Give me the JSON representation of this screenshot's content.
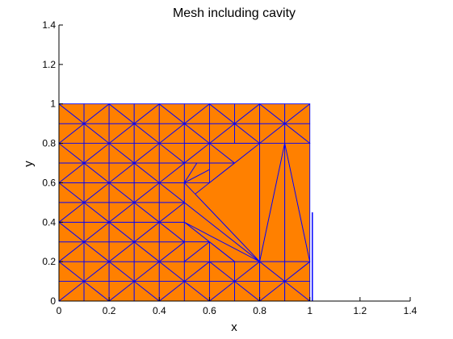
{
  "chart_data": {
    "type": "mesh",
    "title": "Mesh including cavity",
    "xlabel": "x",
    "ylabel": "y",
    "xlim": [
      0,
      1.4
    ],
    "ylim": [
      0,
      1.4
    ],
    "x_ticks": [
      0,
      0.2,
      0.4,
      0.6,
      0.8,
      1,
      1.2,
      1.4
    ],
    "y_ticks": [
      0,
      0.2,
      0.4,
      0.6,
      0.8,
      1,
      1.2,
      1.4
    ],
    "x_tick_labels": [
      "0",
      "0.2",
      "0.4",
      "0.6",
      "0.8",
      "1",
      "1.2",
      "1.4"
    ],
    "y_tick_labels": [
      "0",
      "0.2",
      "0.4",
      "0.6",
      "0.8",
      "1",
      "1.2",
      "1.4"
    ],
    "grid": false,
    "fill_color": "#FF8000",
    "edge_color": "#0000FF",
    "grid_spacing": 0.1,
    "vertices": [
      [
        0.5,
        0.6
      ],
      [
        0.6,
        0.8
      ],
      [
        0.8,
        0.8
      ],
      [
        0.9,
        0.8
      ],
      [
        1.0,
        0.8
      ],
      [
        0.8,
        0.2
      ],
      [
        0.9,
        0.2
      ],
      [
        1.0,
        0.2
      ],
      [
        0.7,
        0.2
      ],
      [
        0.5,
        0.4
      ],
      [
        0.5,
        0.2
      ]
    ],
    "triangles": [
      [
        [
          0.5,
          0.6
        ],
        [
          0.6,
          0.6
        ],
        [
          0.6,
          0.7
        ]
      ],
      [
        [
          0.5,
          0.6
        ],
        [
          0.6,
          0.7
        ],
        [
          0.6,
          0.8
        ]
      ],
      [
        [
          0.5,
          0.6
        ],
        [
          0.5,
          0.7
        ],
        [
          0.6,
          0.8
        ]
      ],
      [
        [
          0.5,
          0.7
        ],
        [
          0.5,
          0.8
        ],
        [
          0.6,
          0.8
        ]
      ],
      [
        [
          0.5,
          0.6
        ],
        [
          0.6,
          0.6
        ],
        [
          0.8,
          0.8
        ]
      ],
      [
        [
          0.5,
          0.6
        ],
        [
          0.6,
          0.8
        ],
        [
          0.8,
          0.8
        ]
      ],
      [
        [
          0.5,
          0.6
        ],
        [
          0.8,
          0.8
        ],
        [
          0.8,
          0.2
        ]
      ],
      [
        [
          0.5,
          0.6
        ],
        [
          0.5,
          0.4
        ],
        [
          0.8,
          0.2
        ]
      ],
      [
        [
          0.5,
          0.4
        ],
        [
          0.8,
          0.2
        ],
        [
          0.7,
          0.2
        ]
      ],
      [
        [
          0.5,
          0.4
        ],
        [
          0.7,
          0.2
        ],
        [
          0.6,
          0.3
        ]
      ],
      [
        [
          0.5,
          0.4
        ],
        [
          0.6,
          0.3
        ],
        [
          0.5,
          0.3
        ]
      ],
      [
        [
          0.5,
          0.3
        ],
        [
          0.6,
          0.3
        ],
        [
          0.5,
          0.2
        ]
      ],
      [
        [
          0.5,
          0.2
        ],
        [
          0.6,
          0.3
        ],
        [
          0.7,
          0.2
        ]
      ],
      [
        [
          0.8,
          0.8
        ],
        [
          0.8,
          0.2
        ],
        [
          0.9,
          0.8
        ]
      ],
      [
        [
          0.8,
          0.2
        ],
        [
          0.9,
          0.8
        ],
        [
          0.9,
          0.2
        ]
      ],
      [
        [
          0.9,
          0.8
        ],
        [
          0.9,
          0.2
        ],
        [
          1.0,
          0.2
        ]
      ],
      [
        [
          0.9,
          0.8
        ],
        [
          1.0,
          0.8
        ],
        [
          1.0,
          0.2
        ]
      ],
      [
        [
          0.8,
          0.8
        ],
        [
          0.9,
          0.9
        ],
        [
          0.9,
          0.8
        ]
      ],
      [
        [
          0.9,
          0.8
        ],
        [
          0.9,
          0.9
        ],
        [
          1.0,
          0.8
        ]
      ],
      [
        [
          0.8,
          0.2
        ],
        [
          0.9,
          0.2
        ],
        [
          0.9,
          0.1
        ]
      ],
      [
        [
          0.9,
          0.2
        ],
        [
          1.0,
          0.2
        ],
        [
          0.9,
          0.1
        ]
      ]
    ]
  }
}
